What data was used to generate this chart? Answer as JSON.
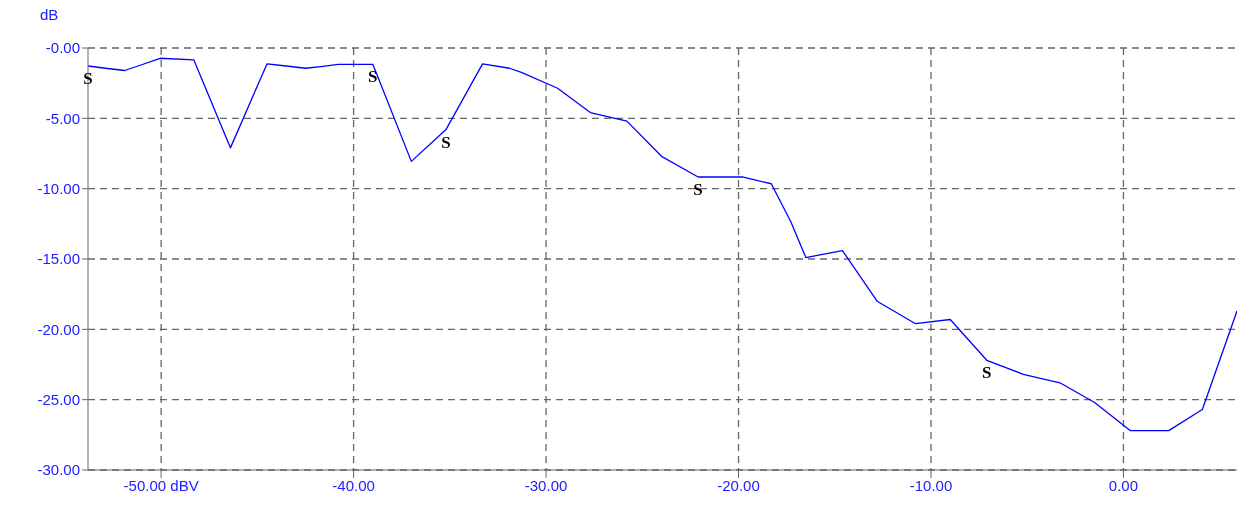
{
  "chart_data": {
    "type": "line",
    "ylabel": "dB",
    "x": [
      -53.8,
      -52.9,
      -51.9,
      -51.2,
      -50.05,
      -48.3,
      -46.4,
      -44.5,
      -43.5,
      -42.5,
      -41.7,
      -40.8,
      -39.0,
      -37.0,
      -35.2,
      -33.3,
      -31.9,
      -31.25,
      -29.4,
      -27.7,
      -25.8,
      -24.0,
      -22.1,
      -19.8,
      -18.3,
      -17.3,
      -16.5,
      -14.6,
      -12.8,
      -10.8,
      -9.0,
      -7.1,
      -5.2,
      -3.3,
      -1.5,
      0.35,
      2.35,
      4.1,
      5.9
    ],
    "series": [
      {
        "color": "#0000ff",
        "values": [
          -1.28,
          -1.44,
          -1.6,
          -1.28,
          -0.73,
          -0.85,
          -7.1,
          -1.13,
          -1.28,
          -1.44,
          -1.32,
          -1.16,
          -1.16,
          -8.06,
          -5.8,
          -1.13,
          -1.44,
          -1.75,
          -2.86,
          -4.59,
          -5.2,
          -7.7,
          -9.17,
          -9.17,
          -9.65,
          -12.3,
          -14.9,
          -14.4,
          -18.0,
          -19.6,
          -19.3,
          -22.2,
          -23.2,
          -23.8,
          -25.2,
          -27.2,
          -27.2,
          -25.7,
          -18.7
        ]
      }
    ],
    "xlim": [
      -53.8,
      5.9
    ],
    "xticks": [
      {
        "value": -50,
        "label": "-50.00 dBV"
      },
      {
        "value": -40,
        "label": "-40.00"
      },
      {
        "value": -30,
        "label": "-30.00"
      },
      {
        "value": -20,
        "label": "-20.00"
      },
      {
        "value": -10,
        "label": "-10.00"
      },
      {
        "value": 0,
        "label": "0.00"
      }
    ],
    "ylim": [
      -30,
      0
    ],
    "yticks": [
      {
        "value": 0,
        "label": "-0.00"
      },
      {
        "value": -5,
        "label": "-5.00"
      },
      {
        "value": -10,
        "label": "-10.00"
      },
      {
        "value": -15,
        "label": "-15.00"
      },
      {
        "value": -20,
        "label": "-20.00"
      },
      {
        "value": -25,
        "label": "-25.00"
      },
      {
        "value": -30,
        "label": "-30.00"
      }
    ],
    "grid": true,
    "marker": "none",
    "line_style": "solid",
    "annotations": [
      {
        "text": "S",
        "x": -53.8,
        "y": -1.28
      },
      {
        "text": "S",
        "x": -39.0,
        "y": -1.16
      },
      {
        "text": "S",
        "x": -35.2,
        "y": -5.8
      },
      {
        "text": "S",
        "x": -22.1,
        "y": -9.17
      },
      {
        "text": "S",
        "x": -7.1,
        "y": -22.2
      }
    ]
  }
}
